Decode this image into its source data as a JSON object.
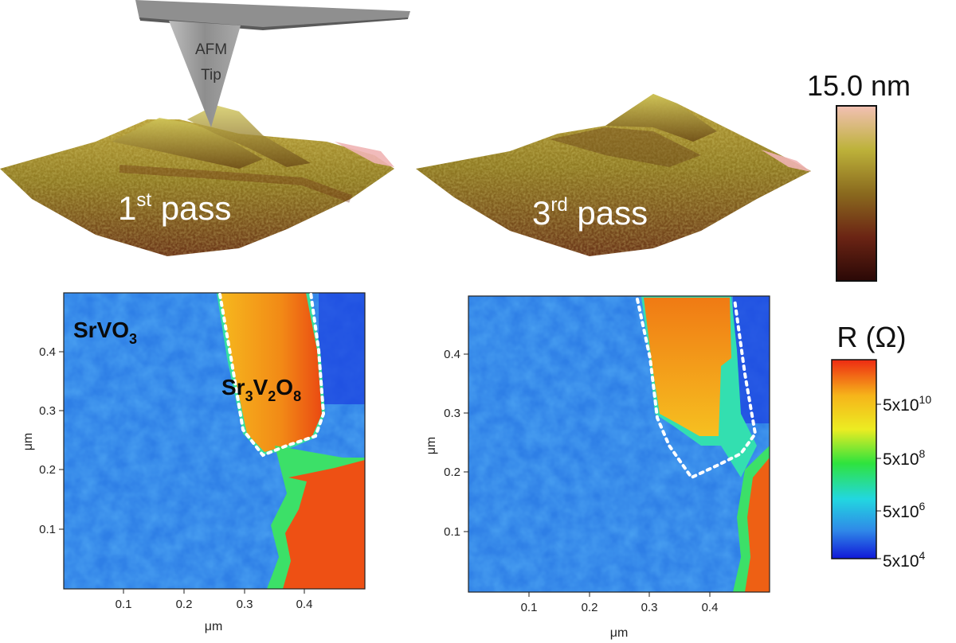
{
  "afm": {
    "tip_line1": "AFM",
    "tip_line2": "Tip",
    "pass1_num": "1",
    "pass1_sup": "st",
    "pass1_word": " pass",
    "pass3_num": "3",
    "pass3_sup": "rd",
    "pass3_word": " pass"
  },
  "height_scale": {
    "label": "15.0 nm",
    "colors": [
      "#f2c0b4",
      "#bdb23a",
      "#8a6a1e",
      "#6b2414",
      "#2a0806"
    ]
  },
  "maps": {
    "axis_unit": "μm",
    "x_ticks": [
      "0.1",
      "0.2",
      "0.3",
      "0.4"
    ],
    "y_ticks": [
      "0.1",
      "0.2",
      "0.3",
      "0.4"
    ],
    "left": {
      "label_srvo3_main": "SrVO",
      "label_srvo3_sub": "3",
      "label_sr3v2o8_a": "Sr",
      "label_sr3v2o8_b": "3",
      "label_sr3v2o8_c": "V",
      "label_sr3v2o8_d": "2",
      "label_sr3v2o8_e": "O",
      "label_sr3v2o8_f": "8"
    }
  },
  "resistance_scale": {
    "title": "R (Ω)",
    "ticks": [
      {
        "base": "5x10",
        "exp": "10"
      },
      {
        "base": "5x10",
        "exp": "8"
      },
      {
        "base": "5x10",
        "exp": "6"
      },
      {
        "base": "5x10",
        "exp": "4"
      }
    ],
    "colors": [
      "#ee2a12",
      "#f6b41a",
      "#ecec22",
      "#2fe33d",
      "#22d7e0",
      "#2f88e8",
      "#1018d8"
    ]
  }
}
